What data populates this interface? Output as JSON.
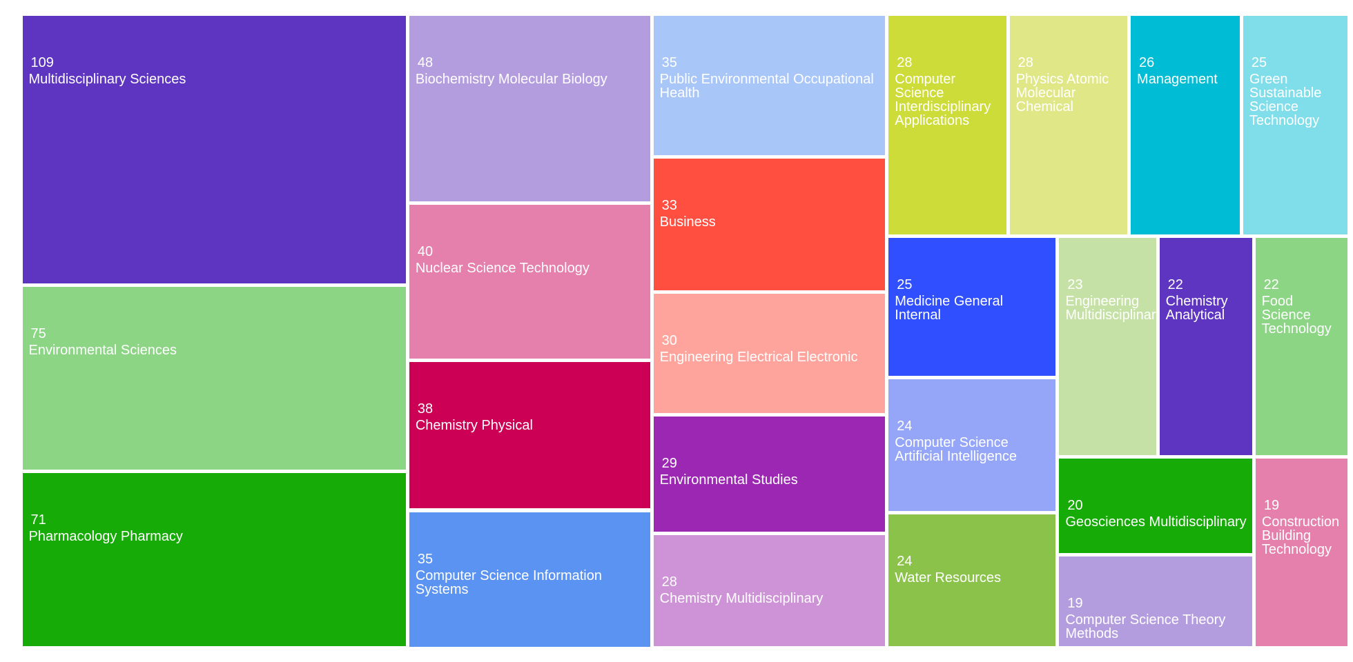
{
  "chart_data": {
    "type": "treemap",
    "categories": [
      "Multidisciplinary Sciences",
      "Environmental Sciences",
      "Pharmacology Pharmacy",
      "Biochemistry Molecular Biology",
      "Nuclear Science Technology",
      "Chemistry Physical",
      "Computer Science Information Systems",
      "Public Environmental Occupational Health",
      "Business",
      "Engineering Electrical Electronic",
      "Environmental Studies",
      "Chemistry Multidisciplinary",
      "Computer Science Interdisciplinary Applications",
      "Physics Atomic Molecular Chemical",
      "Management",
      "Green Sustainable Science Technology",
      "Medicine General Internal",
      "Computer Science Artificial Intelligence",
      "Water Resources",
      "Engineering Multidisciplinary",
      "Chemistry Analytical",
      "Food Science Technology",
      "Geosciences Multidisciplinary",
      "Computer Science Theory Methods",
      "Construction Building Technology"
    ],
    "values": [
      109,
      75,
      71,
      48,
      40,
      38,
      35,
      35,
      33,
      30,
      29,
      28,
      28,
      28,
      26,
      25,
      25,
      24,
      24,
      23,
      22,
      22,
      20,
      19,
      19
    ],
    "colors": [
      "#5e35c1",
      "#8bd585",
      "#16ab06",
      "#b39ddf",
      "#e57fab",
      "#cc0055",
      "#5a93f2",
      "#a8c6f8",
      "#ff4f40",
      "#ffa49c",
      "#9c27b3",
      "#ce93d7",
      "#cddc39",
      "#e0e787",
      "#00bcd4",
      "#80deea",
      "#304ffe",
      "#95a5f8",
      "#8bc34a",
      "#c5e1a5",
      "#5e35c1",
      "#8bd585",
      "#16ab06",
      "#b39ddf",
      "#e57fab"
    ]
  }
}
